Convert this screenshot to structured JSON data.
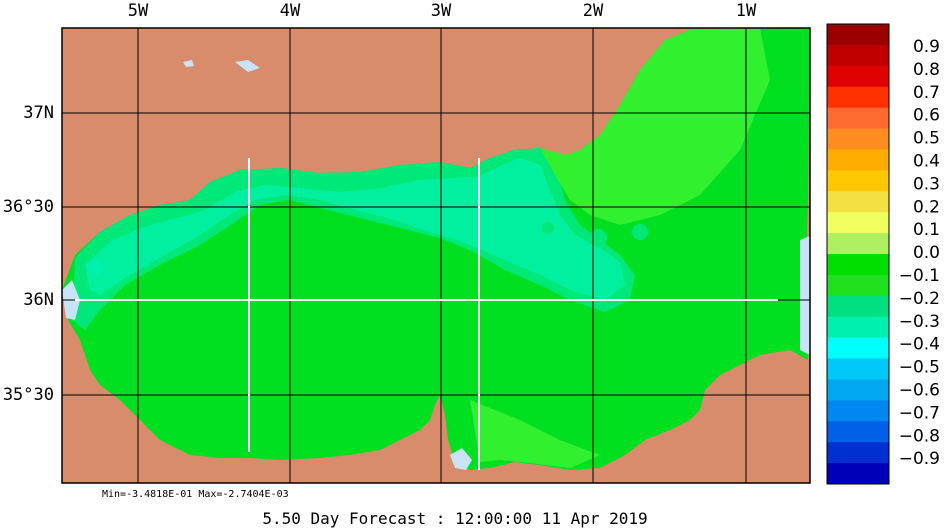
{
  "map": {
    "lon_labels": [
      "5W",
      "4W",
      "3W",
      "2W",
      "1W"
    ],
    "lat_labels": [
      "37N",
      "36°30",
      "36N",
      "35°30"
    ],
    "colors": {
      "land": "#d88c6c",
      "water_light": "#c8e4f4",
      "cyan_light": "#00f0a0",
      "green": "#00e020",
      "green_bright": "#30f030",
      "mint": "#00e878"
    }
  },
  "colorbar": {
    "labels": [
      "0.9",
      "0.8",
      "0.7",
      "0.6",
      "0.5",
      "0.4",
      "0.3",
      "0.2",
      "0.1",
      "0.0",
      "−0.1",
      "−0.2",
      "−0.3",
      "−0.4",
      "−0.5",
      "−0.6",
      "−0.7",
      "−0.8",
      "−0.9"
    ],
    "colors": [
      "#9a0000",
      "#c00000",
      "#e00000",
      "#ff3000",
      "#ff6a30",
      "#ff8c20",
      "#ffac00",
      "#ffc800",
      "#f4e040",
      "#f0ff60",
      "#b0f060",
      "#00e000",
      "#20e020",
      "#00e080",
      "#00f0b0",
      "#00ffff",
      "#00c8f8",
      "#00a8f0",
      "#0088f0",
      "#0060e8",
      "#0030d0",
      "#0000b8"
    ]
  },
  "stats": "Min=-3.4818E-01  Max=-2.7404E-03",
  "caption": "5.50 Day Forecast : 12:00:00  11 Apr 2019"
}
